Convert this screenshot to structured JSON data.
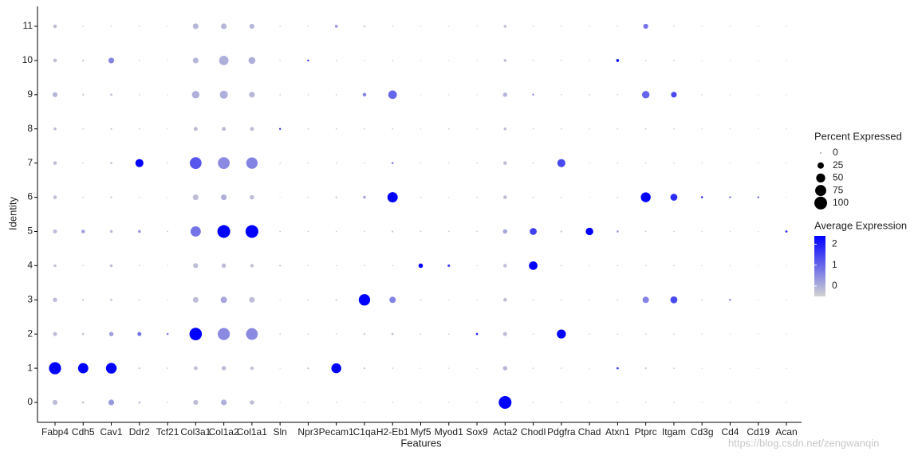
{
  "chart_data": {
    "type": "dot",
    "x_label": "Features",
    "y_label": "Identity",
    "categories": [
      "Fabp4",
      "Cdh5",
      "Cav1",
      "Ddr2",
      "Tcf21",
      "Col3a1",
      "Col1a2",
      "Col1a1",
      "Sln",
      "Npr3",
      "Pecam1",
      "C1qa",
      "H2-Eb1",
      "Myf5",
      "Myod1",
      "Sox9",
      "Acta2",
      "Chodl",
      "Pdgfra",
      "Chad",
      "Atxn1",
      "Ptprc",
      "Itgam",
      "Cd3g",
      "Cd4",
      "Cd19",
      "Acan"
    ],
    "identities": [
      "0",
      "1",
      "2",
      "3",
      "4",
      "5",
      "6",
      "7",
      "8",
      "9",
      "10",
      "11"
    ],
    "pct_expressed": [
      [
        15,
        3,
        20,
        3,
        1,
        15,
        20,
        12,
        0,
        1,
        1,
        1,
        1,
        0,
        0,
        0,
        100,
        1,
        1,
        0,
        1,
        1,
        1,
        0,
        0,
        0,
        0
      ],
      [
        90,
        65,
        70,
        2,
        1,
        10,
        12,
        8,
        0,
        2,
        60,
        2,
        1,
        0,
        0,
        0,
        12,
        1,
        1,
        0,
        3,
        2,
        1,
        0,
        0,
        0,
        0
      ],
      [
        10,
        3,
        12,
        10,
        3,
        95,
        90,
        85,
        1,
        1,
        1,
        2,
        3,
        1,
        1,
        3,
        10,
        1,
        50,
        1,
        1,
        1,
        1,
        0,
        0,
        0,
        0
      ],
      [
        12,
        2,
        3,
        1,
        0,
        20,
        25,
        20,
        0,
        1,
        2,
        80,
        25,
        1,
        0,
        0,
        8,
        1,
        1,
        0,
        1,
        25,
        30,
        1,
        3,
        0,
        0
      ],
      [
        5,
        1,
        5,
        1,
        0,
        15,
        12,
        8,
        2,
        1,
        1,
        1,
        1,
        12,
        4,
        0,
        8,
        45,
        1,
        0,
        1,
        1,
        1,
        0,
        0,
        0,
        0
      ],
      [
        10,
        8,
        5,
        5,
        1,
        65,
        100,
        100,
        1,
        1,
        1,
        1,
        2,
        1,
        1,
        1,
        12,
        30,
        2,
        35,
        3,
        1,
        1,
        0,
        0,
        0,
        3
      ],
      [
        8,
        1,
        2,
        1,
        0,
        20,
        20,
        12,
        0,
        1,
        2,
        5,
        65,
        1,
        0,
        1,
        8,
        1,
        1,
        0,
        1,
        60,
        30,
        3,
        2,
        2,
        0
      ],
      [
        8,
        1,
        3,
        40,
        1,
        85,
        85,
        80,
        1,
        1,
        1,
        1,
        3,
        0,
        0,
        1,
        8,
        1,
        40,
        0,
        1,
        1,
        1,
        0,
        0,
        0,
        0
      ],
      [
        5,
        1,
        2,
        1,
        0,
        10,
        10,
        10,
        2,
        1,
        1,
        1,
        1,
        0,
        1,
        0,
        5,
        1,
        1,
        0,
        1,
        1,
        1,
        0,
        0,
        0,
        0
      ],
      [
        15,
        2,
        3,
        1,
        0,
        35,
        40,
        20,
        1,
        1,
        1,
        8,
        45,
        0,
        0,
        0,
        12,
        2,
        1,
        1,
        1,
        35,
        20,
        1,
        0,
        0,
        0
      ],
      [
        8,
        2,
        20,
        1,
        0,
        20,
        55,
        30,
        1,
        2,
        1,
        1,
        1,
        0,
        0,
        0,
        5,
        1,
        1,
        0,
        5,
        1,
        1,
        0,
        0,
        0,
        0
      ],
      [
        8,
        1,
        1,
        1,
        0,
        20,
        20,
        15,
        1,
        1,
        5,
        2,
        1,
        0,
        0,
        0,
        5,
        1,
        1,
        0,
        1,
        15,
        1,
        0,
        0,
        0,
        0
      ]
    ],
    "avg_expression": [
      [
        -0.2,
        -0.3,
        0.3,
        -0.2,
        -0.3,
        -0.2,
        0,
        -0.2,
        -0.3,
        -0.3,
        -0.3,
        -0.3,
        -0.3,
        -0.3,
        -0.3,
        -0.3,
        2.4,
        -0.3,
        -0.3,
        -0.3,
        -0.3,
        -0.3,
        -0.3,
        -0.3,
        -0.3,
        -0.3,
        -0.3
      ],
      [
        2.4,
        2.4,
        2.4,
        -0.3,
        -0.3,
        -0.3,
        -0.2,
        -0.3,
        -0.3,
        -0.3,
        2.4,
        -0.3,
        -0.3,
        -0.3,
        -0.3,
        -0.3,
        -0.1,
        -0.3,
        -0.3,
        -0.3,
        1.5,
        -0.3,
        -0.3,
        -0.3,
        -0.3,
        -0.3,
        -0.3
      ],
      [
        -0.2,
        -0.3,
        0.2,
        0.8,
        0.5,
        2.4,
        0.5,
        0.5,
        -0.3,
        -0.3,
        -0.3,
        -0.3,
        -0.3,
        -0.3,
        -0.3,
        1.8,
        -0.2,
        -0.3,
        2.4,
        -0.3,
        -0.3,
        -0.3,
        -0.3,
        -0.3,
        -0.3,
        -0.3,
        -0.3
      ],
      [
        -0.2,
        -0.3,
        -0.3,
        -0.3,
        -0.3,
        -0.2,
        0.1,
        -0.2,
        -0.3,
        -0.3,
        -0.3,
        2.4,
        0.6,
        -0.3,
        -0.3,
        -0.3,
        -0.2,
        -0.3,
        -0.3,
        -0.3,
        -0.3,
        0.6,
        1.4,
        -0.3,
        0.4,
        -0.3,
        -0.3
      ],
      [
        -0.3,
        -0.3,
        -0.2,
        -0.3,
        -0.3,
        -0.2,
        -0.2,
        -0.3,
        -0.3,
        -0.3,
        -0.3,
        -0.3,
        -0.3,
        2.4,
        1.5,
        -0.3,
        -0.2,
        2.4,
        -0.3,
        -0.3,
        -0.3,
        -0.3,
        -0.3,
        -0.3,
        -0.3,
        -0.3,
        -0.3
      ],
      [
        -0.2,
        0.2,
        -0.2,
        0.3,
        -0.3,
        0.8,
        2.4,
        2.4,
        -0.3,
        -0.3,
        -0.3,
        -0.3,
        -0.3,
        -0.3,
        -0.3,
        -0.3,
        0.1,
        1.5,
        -0.3,
        2.4,
        0.2,
        -0.3,
        -0.3,
        -0.3,
        -0.3,
        -0.3,
        1.8
      ],
      [
        -0.2,
        -0.3,
        -0.3,
        -0.3,
        -0.3,
        -0.2,
        0,
        -0.2,
        -0.3,
        -0.3,
        -0.3,
        0.1,
        2.4,
        -0.3,
        -0.3,
        -0.3,
        -0.2,
        -0.3,
        -0.3,
        -0.3,
        -0.3,
        2.4,
        1.8,
        1.5,
        1.2,
        1.2,
        -0.3
      ],
      [
        -0.2,
        -0.3,
        -0.3,
        2.4,
        -0.3,
        1.2,
        0.5,
        0.6,
        -0.3,
        -0.3,
        -0.3,
        -0.3,
        0.5,
        -0.3,
        -0.3,
        -0.3,
        -0.2,
        -0.3,
        1.4,
        -0.3,
        -0.3,
        -0.3,
        -0.3,
        -0.3,
        -0.3,
        -0.3,
        -0.3
      ],
      [
        -0.2,
        -0.3,
        -0.3,
        -0.3,
        -0.3,
        -0.2,
        -0.2,
        -0.2,
        2,
        -0.3,
        -0.3,
        -0.3,
        -0.3,
        -0.3,
        -0.3,
        -0.3,
        -0.2,
        -0.3,
        -0.3,
        -0.3,
        -0.3,
        -0.3,
        -0.3,
        -0.3,
        -0.3,
        -0.3,
        -0.3
      ],
      [
        -0.1,
        -0.3,
        -0.3,
        -0.3,
        -0.3,
        0,
        0,
        -0.1,
        -0.3,
        -0.3,
        -0.3,
        0.6,
        1,
        -0.3,
        -0.3,
        -0.3,
        -0.1,
        0.6,
        -0.3,
        -0.3,
        -0.3,
        1,
        1.4,
        -0.3,
        -0.3,
        -0.3,
        -0.3
      ],
      [
        -0.2,
        -0.3,
        0.6,
        -0.3,
        -0.3,
        -0.1,
        0,
        0,
        -0.3,
        2,
        -0.3,
        -0.3,
        -0.3,
        -0.3,
        -0.3,
        -0.3,
        -0.2,
        -0.3,
        -0.3,
        -0.3,
        2.4,
        -0.3,
        -0.3,
        -0.3,
        -0.3,
        -0.3,
        -0.3
      ],
      [
        -0.2,
        -0.3,
        -0.3,
        -0.3,
        -0.3,
        -0.1,
        -0.1,
        -0.1,
        -0.3,
        -0.3,
        0.4,
        -0.3,
        -0.3,
        -0.3,
        -0.3,
        -0.3,
        -0.2,
        -0.3,
        -0.3,
        -0.3,
        -0.3,
        0.8,
        -0.3,
        -0.3,
        -0.3,
        -0.3,
        -0.3
      ]
    ],
    "size_title": "Percent Expressed",
    "size_ticks": [
      0,
      25,
      50,
      75,
      100
    ],
    "size_lim": [
      0,
      100
    ],
    "color_title": "Average Expression",
    "color_lim": [
      -0.5,
      2.4
    ],
    "color_ticks": [
      0,
      1,
      2
    ],
    "color_low": "#d3d3d3",
    "color_high": "#0000ff",
    "watermark": "https://blog.csdn.net/zengwanqin"
  }
}
